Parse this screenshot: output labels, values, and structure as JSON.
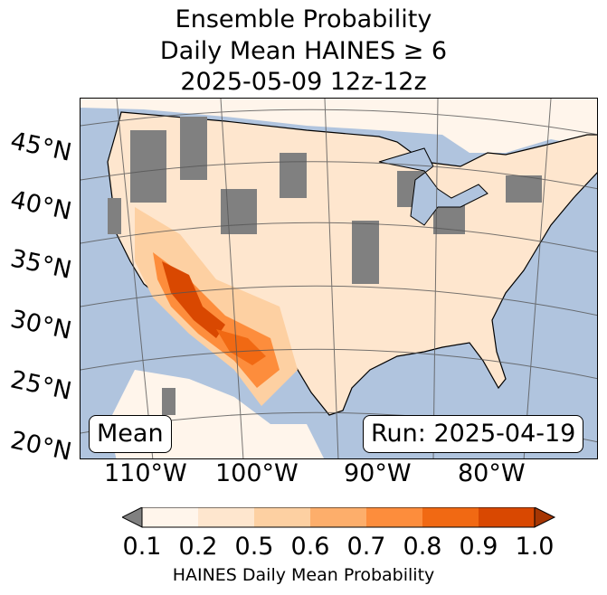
{
  "title": {
    "line1": "Ensemble Probability",
    "line2": "Daily Mean HAINES ≥ 6",
    "line3": "2025-05-09 12z-12z"
  },
  "map": {
    "lat_labels": [
      "45°N",
      "40°N",
      "35°N",
      "30°N",
      "25°N",
      "20°N"
    ],
    "lon_labels": [
      "110°W",
      "100°W",
      "90°W",
      "80°W"
    ],
    "mean_label": "Mean",
    "run_label": "Run: 2025-04-19"
  },
  "colorbar": {
    "ticks": [
      "0.1",
      "0.2",
      "0.5",
      "0.6",
      "0.7",
      "0.8",
      "0.9",
      "1.0"
    ],
    "colors": [
      "#fff5eb",
      "#fee6ce",
      "#fdd0a2",
      "#fdae6b",
      "#fd8d3c",
      "#f16913",
      "#d94801"
    ],
    "under_color": "#808080",
    "over_color": "#a63603",
    "label": "HAINES Daily Mean Probability"
  }
}
